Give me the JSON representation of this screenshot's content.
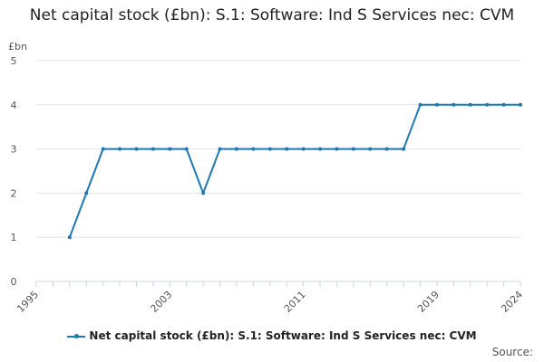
{
  "title": "Net capital stock (£bn): S.1: Software: Ind S Services nec: CVM",
  "unit_label": "£bn",
  "legend_label": "Net capital stock (£bn): S.1: Software: Ind S Services nec: CVM",
  "source_label": "Source:",
  "colors": {
    "series": "#1f78b4",
    "grid": "#e6e6e6",
    "axis": "#ccd6eb"
  },
  "chart_data": {
    "type": "line",
    "title": "Net capital stock (£bn): S.1: Software: Ind S Services nec: CVM",
    "ylabel": "£bn",
    "xlim": [
      1995,
      2024
    ],
    "ylim": [
      0,
      5
    ],
    "grid": true,
    "legend_position": "bottom",
    "x_ticks": [
      1995,
      2003,
      2011,
      2019,
      2024
    ],
    "y_ticks": [
      0,
      1,
      2,
      3,
      4,
      5
    ],
    "series": [
      {
        "name": "Net capital stock (£bn): S.1: Software: Ind S Services nec: CVM",
        "x": [
          1997,
          1998,
          1999,
          2000,
          2001,
          2002,
          2003,
          2004,
          2005,
          2006,
          2007,
          2008,
          2009,
          2010,
          2011,
          2012,
          2013,
          2014,
          2015,
          2016,
          2017,
          2018,
          2019,
          2020,
          2021,
          2022,
          2023,
          2024
        ],
        "values": [
          1,
          2,
          3,
          3,
          3,
          3,
          3,
          3,
          2,
          3,
          3,
          3,
          3,
          3,
          3,
          3,
          3,
          3,
          3,
          3,
          3,
          4,
          4,
          4,
          4,
          4,
          4,
          4
        ]
      }
    ]
  }
}
